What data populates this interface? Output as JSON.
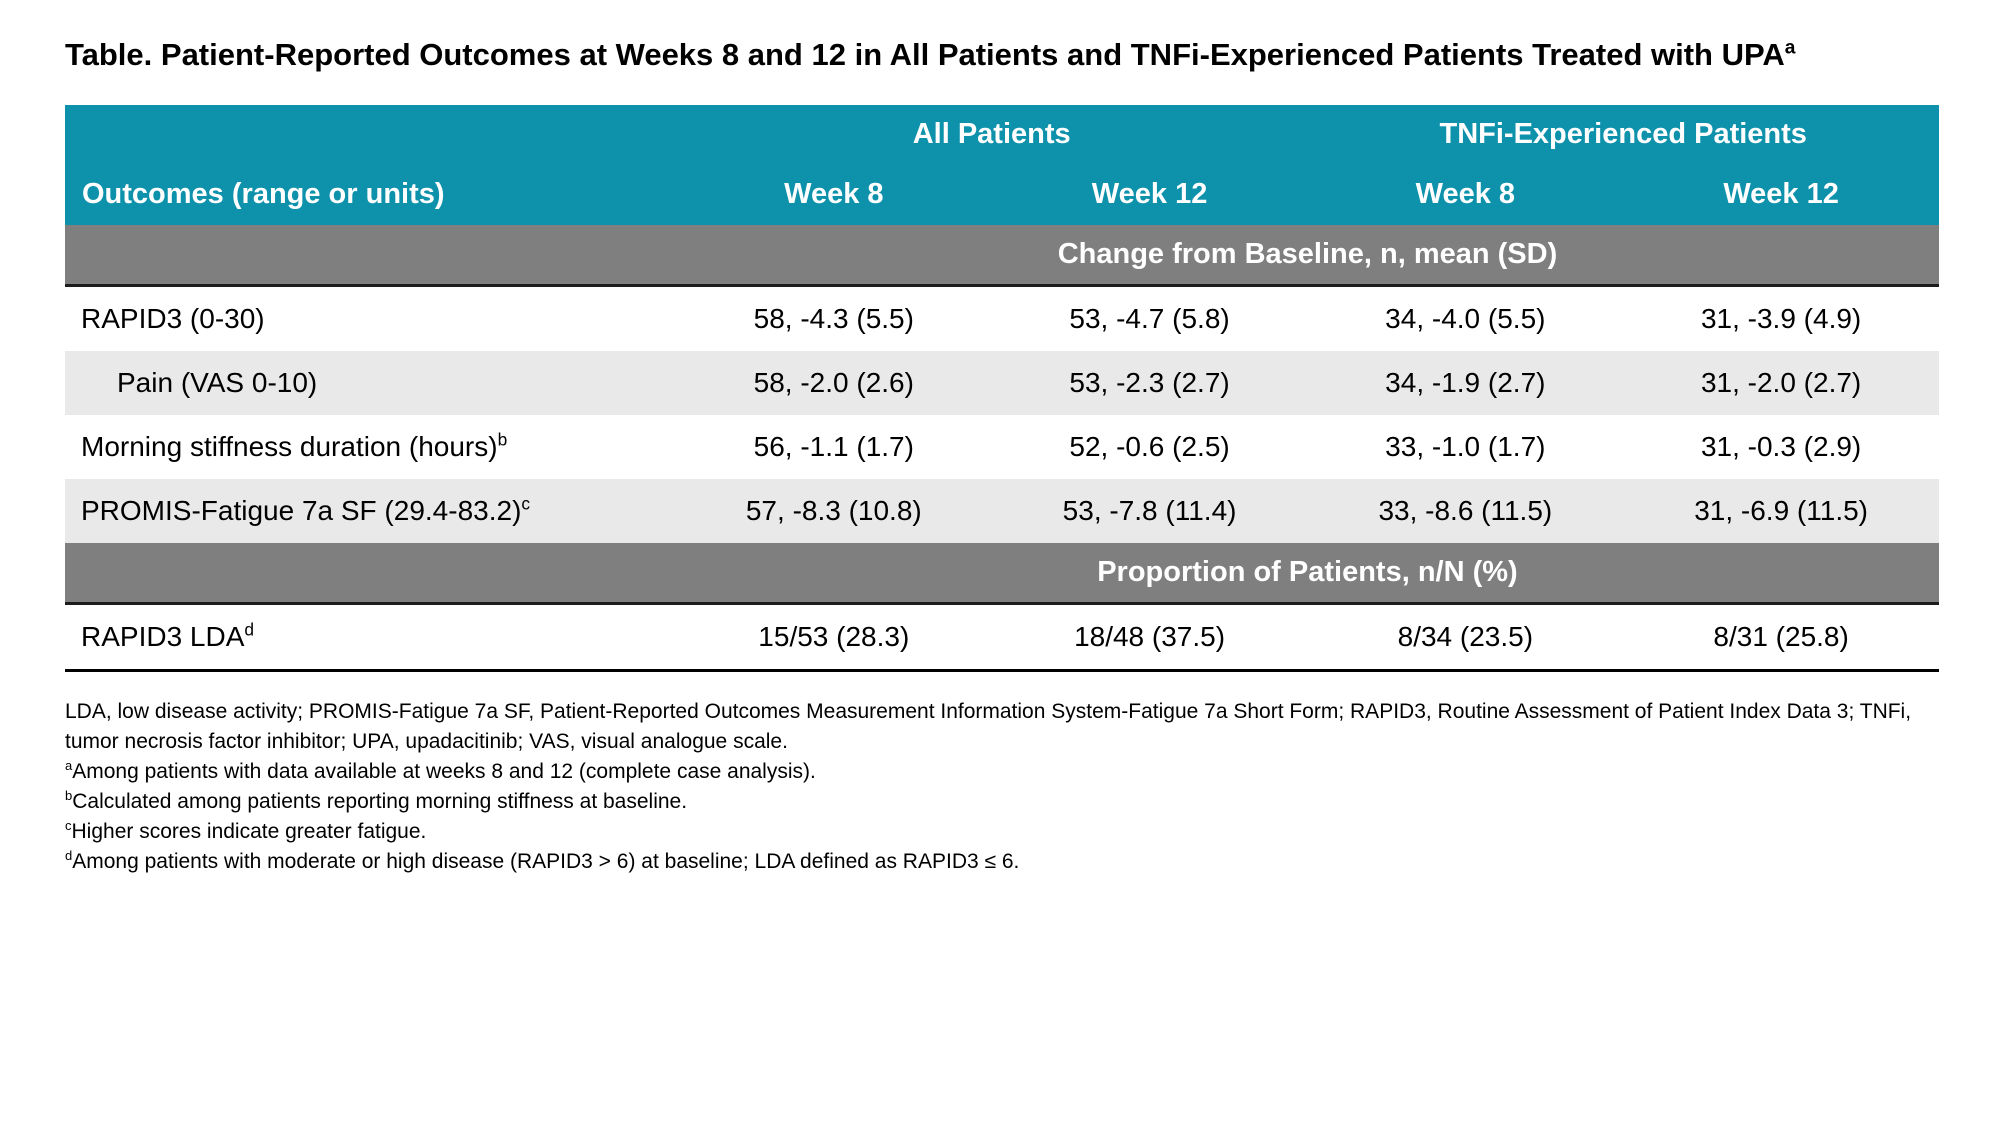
{
  "title": {
    "text": "Table. Patient-Reported Outcomes at Weeks 8 and 12 in All Patients and TNFi-Experienced Patients Treated with UPA",
    "sup": "a"
  },
  "colors": {
    "header_teal": "#0E92AC",
    "band_gray": "#7F7F7F",
    "zebra_gray": "#E9E9E9",
    "text_on_dark": "#FFFFFF",
    "text": "#000000"
  },
  "table": {
    "group_headers": [
      {
        "label": "All Patients"
      },
      {
        "label": "TNFi-Experienced Patients"
      }
    ],
    "column_headers": {
      "outcomes": "Outcomes (range or units)",
      "cols": [
        "Week 8",
        "Week 12",
        "Week 8",
        "Week 12"
      ]
    },
    "sections": [
      {
        "band": "Change from Baseline, n, mean (SD)",
        "rows": [
          {
            "label": "RAPID3 (0-30)",
            "sup": "",
            "values": [
              "58, -4.3 (5.5)",
              "53, -4.7 (5.8)",
              "34, -4.0 (5.5)",
              "31, -3.9 (4.9)"
            ]
          },
          {
            "label": "Pain (VAS 0-10)",
            "sup": "",
            "values": [
              "58, -2.0 (2.6)",
              "53, -2.3 (2.7)",
              "34, -1.9 (2.7)",
              "31, -2.0 (2.7)"
            ]
          },
          {
            "label": "Morning stiffness duration (hours)",
            "sup": "b",
            "values": [
              "56, -1.1 (1.7)",
              "52, -0.6 (2.5)",
              "33, -1.0 (1.7)",
              "31, -0.3 (2.9)"
            ]
          },
          {
            "label": "PROMIS-Fatigue 7a SF (29.4-83.2)",
            "sup": "c",
            "values": [
              "57, -8.3 (10.8)",
              "53, -7.8 (11.4)",
              "33, -8.6 (11.5)",
              "31, -6.9 (11.5)"
            ]
          }
        ]
      },
      {
        "band": "Proportion of Patients, n/N (%)",
        "rows": [
          {
            "label": "RAPID3 LDA",
            "sup": "d",
            "values": [
              "15/53 (28.3)",
              "18/48 (37.5)",
              "8/34 (23.5)",
              "8/31 (25.8)"
            ]
          }
        ]
      }
    ]
  },
  "footnotes": {
    "abbreviations": "LDA, low disease activity; PROMIS-Fatigue 7a SF, Patient-Reported Outcomes Measurement Information System-Fatigue 7a Short Form; RAPID3, Routine Assessment of Patient Index Data 3; TNFi, tumor necrosis factor inhibitor; UPA, upadacitinib; VAS, visual analogue scale.",
    "notes": [
      {
        "marker": "a",
        "text": "Among patients with data available at weeks 8 and 12 (complete case analysis)."
      },
      {
        "marker": "b",
        "text": "Calculated among patients reporting morning stiffness at baseline."
      },
      {
        "marker": "c",
        "text": "Higher scores indicate greater fatigue."
      },
      {
        "marker": "d",
        "text": "Among patients with moderate or high disease (RAPID3 > 6) at baseline; LDA defined as RAPID3 ≤ 6."
      }
    ]
  }
}
